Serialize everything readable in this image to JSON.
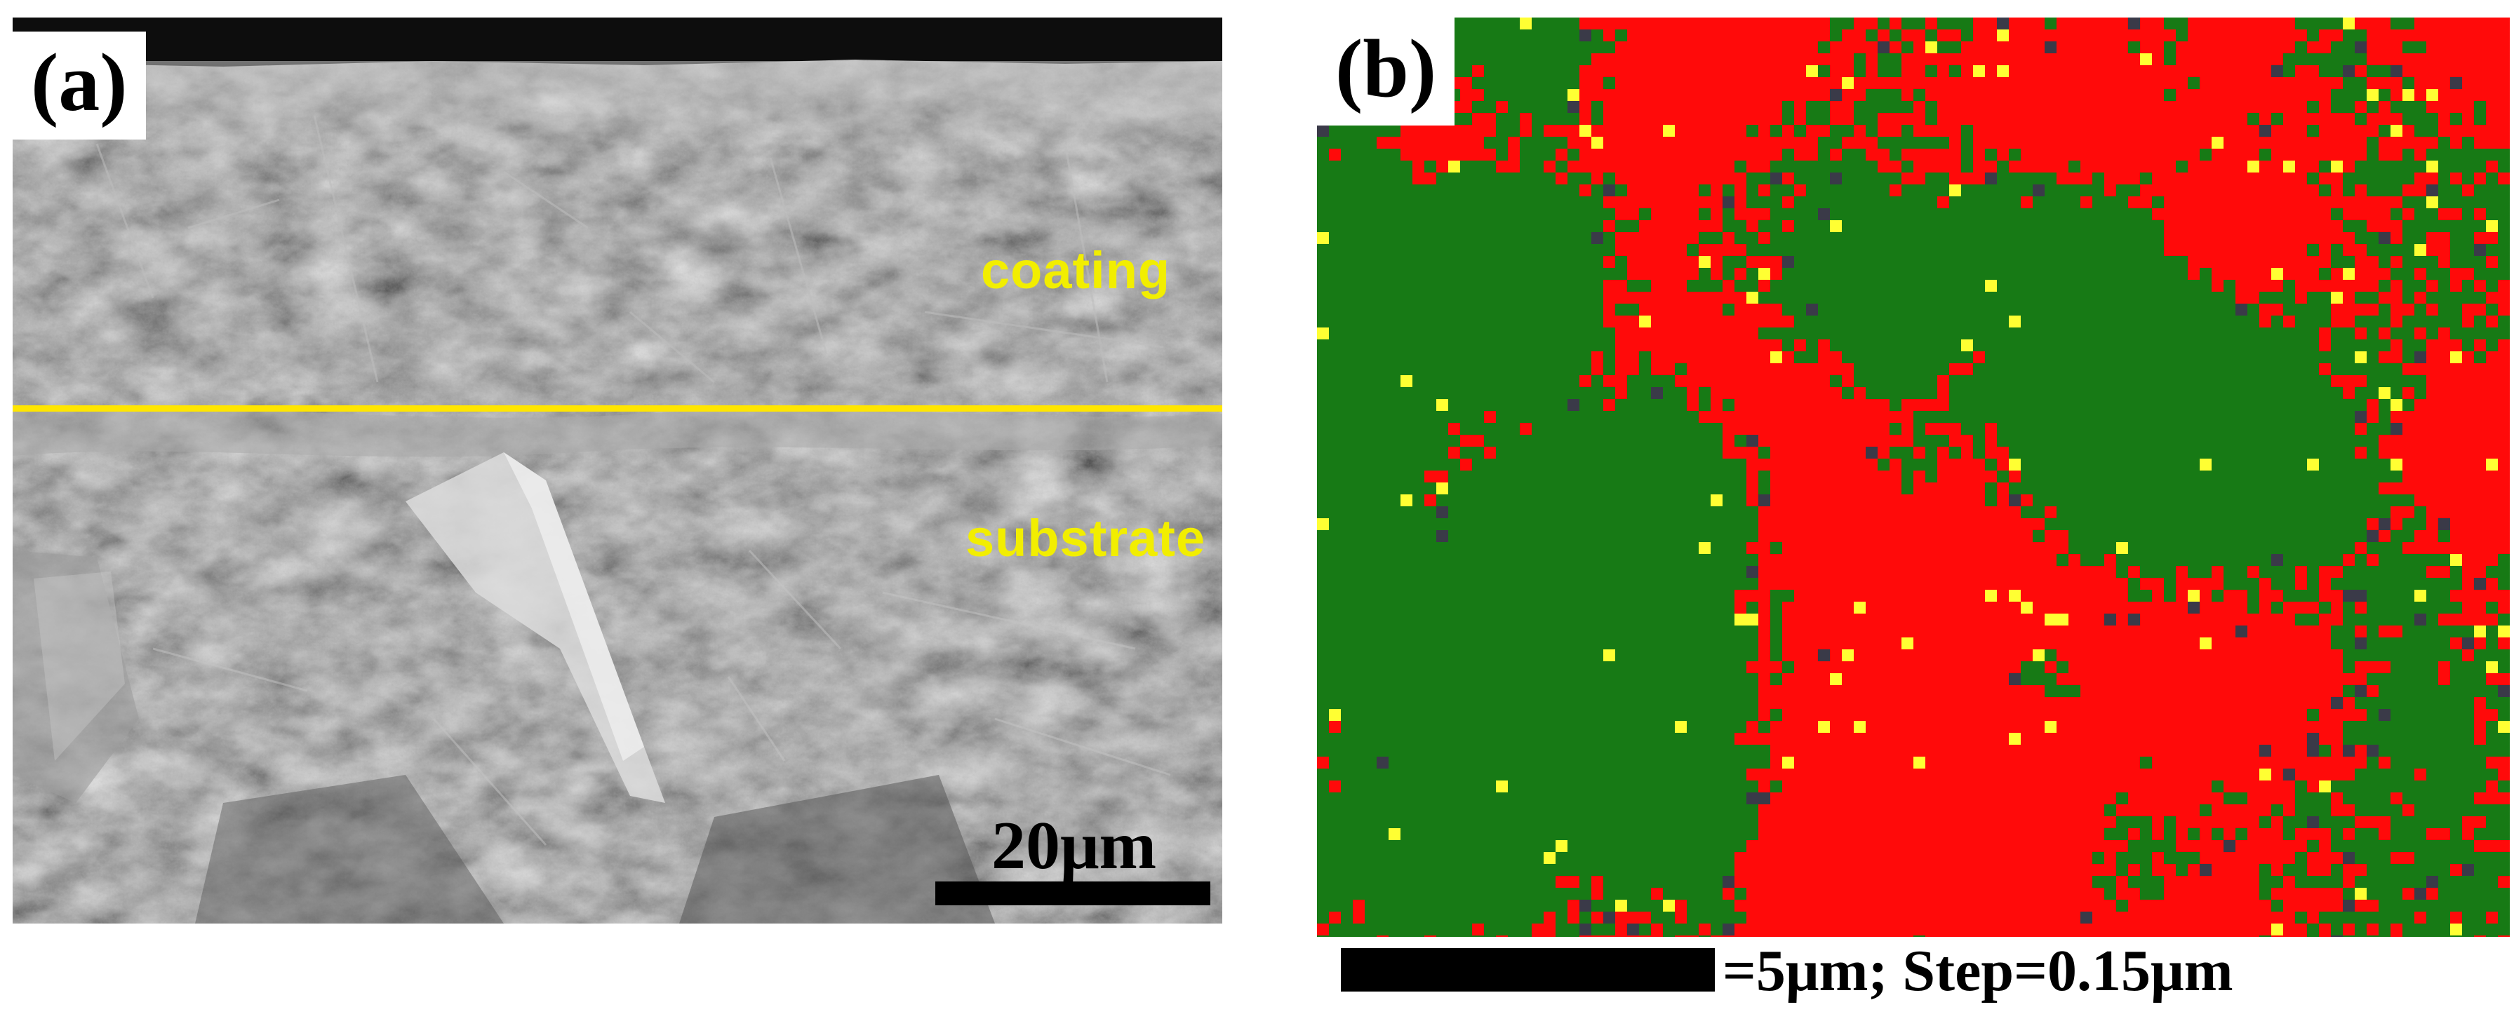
{
  "panel_a": {
    "label": "(a)",
    "coating_label": "coating",
    "substrate_label": "substrate",
    "scale_bar_text": "20μm",
    "colors": {
      "interface_line": "#ffe600",
      "labels": "#f2ee00",
      "sem_gray": "#6d6d6d"
    }
  },
  "panel_b": {
    "label": "(b)",
    "scale_bar_text": "=5μm; Step=0.15μm",
    "colors": {
      "phase_green": "#177a15",
      "phase_red": "#ff0a0a",
      "phase_yellow": "#ffff33",
      "unindexed": "#3a3a48"
    }
  }
}
